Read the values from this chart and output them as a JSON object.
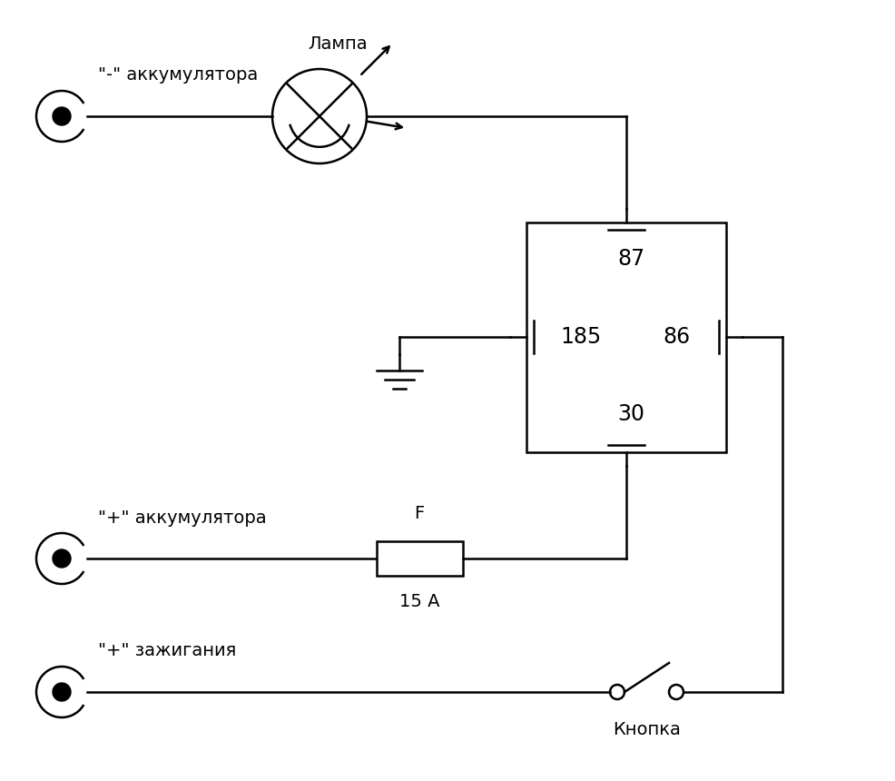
{
  "bg_color": "#ffffff",
  "line_color": "#000000",
  "labels": {
    "neg_battery": "\"-\" аккумулятора",
    "pos_battery": "\"+\" аккумулятора",
    "pos_ignition": "\"+\" зажигания",
    "lamp_label": "Лампа",
    "fuse_label": "F",
    "fuse_rating": "15 А",
    "button_label": "Кнопка",
    "pin_87": "87",
    "pin_85": "185",
    "pin_86": "86",
    "pin_30": "30"
  }
}
